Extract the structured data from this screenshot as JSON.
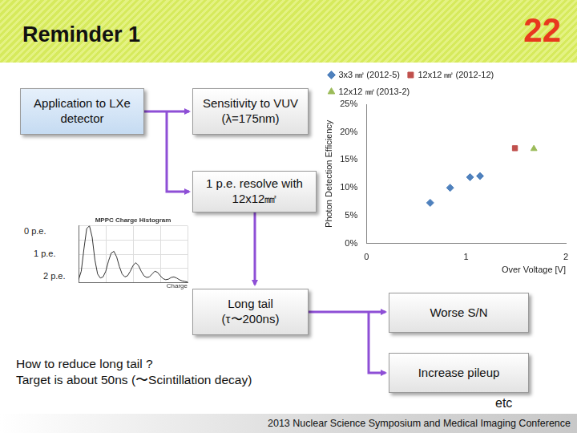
{
  "header": {
    "title": "Reminder 1",
    "page": "22"
  },
  "boxes": {
    "application": [
      "Application to LXe",
      "detector"
    ],
    "sensitivity": [
      "Sensitivity to VUV",
      "(λ=175nm)"
    ],
    "resolve": [
      "1 p.e. resolve with",
      "12x12㎟"
    ],
    "tail": [
      "Long tail",
      "(τ〜200ns)"
    ],
    "sn": [
      "Worse S/N"
    ],
    "pileup": [
      "Increase pileup"
    ]
  },
  "peaks": [
    "0 p.e.",
    "1 p.e.",
    "2 p.e."
  ],
  "question": [
    "How to reduce long tail ?",
    "Target is about 50ns (〜Scintillation decay)"
  ],
  "etc": "etc",
  "footer": "2013 Nuclear Science Symposium and Medical Imaging Conference",
  "chart_data": [
    {
      "type": "scatter",
      "ylabel": "Photon Detection Efficiency",
      "xlabel": "Over Voltage [V]",
      "xlim": [
        0,
        2
      ],
      "xticks": [
        0,
        1,
        2
      ],
      "ylim": [
        0,
        25
      ],
      "yticks": [
        {
          "value": 0,
          "label": "0%"
        },
        {
          "value": 5,
          "label": "5%"
        },
        {
          "value": 10,
          "label": "10%"
        },
        {
          "value": 15,
          "label": "15%"
        },
        {
          "value": 20,
          "label": "20%"
        },
        {
          "value": 25,
          "label": "25%"
        }
      ],
      "grid": false,
      "legend": "top-left",
      "series": [
        {
          "name": "3x3 ㎟ (2012-5)",
          "color": "#4f81bd",
          "marker": "diamond",
          "x": [
            0.64,
            0.84,
            1.04,
            1.14
          ],
          "values": [
            7.3,
            10.0,
            11.9,
            12.1
          ]
        },
        {
          "name": "12x12 ㎟ (2012-12)",
          "color": "#c0504d",
          "marker": "square",
          "x": [
            1.49
          ],
          "values": [
            17.1
          ]
        },
        {
          "name": "12x12 ㎟ (2013-2)",
          "color": "#9bbb59",
          "marker": "triangle",
          "x": [
            1.68
          ],
          "values": [
            17.0
          ]
        }
      ]
    },
    {
      "type": "line",
      "title": "MPPC Charge Histogram",
      "xlabel": "Charge",
      "xlim": [
        0,
        40
      ],
      "xticks": [
        0,
        10,
        20,
        30,
        40
      ],
      "ylim": [
        0,
        100
      ],
      "yticks": [
        0,
        25,
        50,
        75,
        100
      ],
      "grid": true,
      "tick_labels": false,
      "color": "#333333",
      "x": [
        0,
        1,
        2,
        3,
        4,
        5,
        6,
        7,
        8,
        9,
        10,
        11,
        12,
        13,
        14,
        15,
        16,
        17,
        18,
        19,
        20,
        21,
        22,
        23,
        24,
        25,
        26,
        27,
        28,
        29,
        30,
        31,
        32,
        33,
        34,
        35,
        36,
        37,
        38,
        39,
        40
      ],
      "values": [
        5,
        20,
        60,
        95,
        100,
        80,
        40,
        15,
        8,
        10,
        20,
        38,
        52,
        55,
        45,
        28,
        15,
        10,
        12,
        20,
        30,
        35,
        30,
        20,
        12,
        9,
        10,
        15,
        20,
        18,
        12,
        7,
        5,
        6,
        9,
        10,
        8,
        5,
        3,
        2,
        1
      ]
    }
  ]
}
